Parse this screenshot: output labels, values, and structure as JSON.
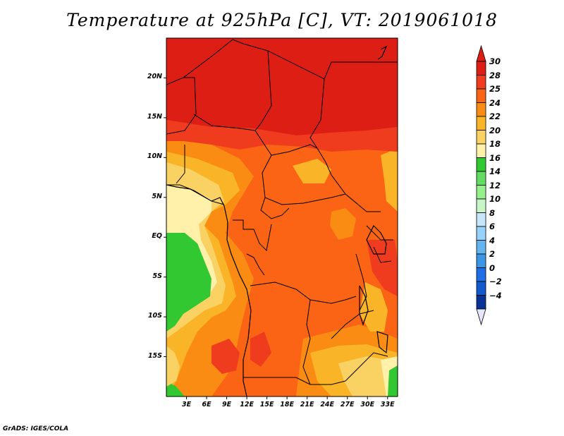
{
  "title": "Temperature at 925hPa [C], VT: 2019061018",
  "credit": "GrADS: IGES/COLA",
  "map": {
    "lat_range": [
      -20,
      25
    ],
    "lon_range": [
      0,
      34.5
    ],
    "lat_ticks": [
      {
        "value": 20,
        "label": "20N"
      },
      {
        "value": 15,
        "label": "15N"
      },
      {
        "value": 10,
        "label": "10N"
      },
      {
        "value": 5,
        "label": "5N"
      },
      {
        "value": 0,
        "label": "EQ"
      },
      {
        "value": -5,
        "label": "5S"
      },
      {
        "value": -10,
        "label": "10S"
      },
      {
        "value": -15,
        "label": "15S"
      }
    ],
    "lon_ticks": [
      {
        "value": 3,
        "label": "3E"
      },
      {
        "value": 6,
        "label": "6E"
      },
      {
        "value": 9,
        "label": "9E"
      },
      {
        "value": 12,
        "label": "12E"
      },
      {
        "value": 15,
        "label": "15E"
      },
      {
        "value": 18,
        "label": "18E"
      },
      {
        "value": 21,
        "label": "21E"
      },
      {
        "value": 24,
        "label": "24E"
      },
      {
        "value": 27,
        "label": "27E"
      },
      {
        "value": 30,
        "label": "30E"
      },
      {
        "value": 33,
        "label": "33E"
      }
    ]
  },
  "colorbar": {
    "levels": [
      "30",
      "28",
      "25",
      "24",
      "22",
      "20",
      "18",
      "16",
      "14",
      "12",
      "10",
      "8",
      "6",
      "4",
      "2",
      "0",
      "−2",
      "−4"
    ],
    "colors": [
      "#dc1e14",
      "#f03c1e",
      "#fa6414",
      "#fa8c14",
      "#fab428",
      "#fad264",
      "#fff0aa",
      "#32c832",
      "#64dc64",
      "#96f08c",
      "#c8f5c8",
      "#c8e6fa",
      "#96d2fa",
      "#64b4f0",
      "#3c96e6",
      "#1e6ee6",
      "#145acd",
      "#0a3296"
    ],
    "over_color": "#dc1e14",
    "under_color": "#e6e6fa"
  }
}
